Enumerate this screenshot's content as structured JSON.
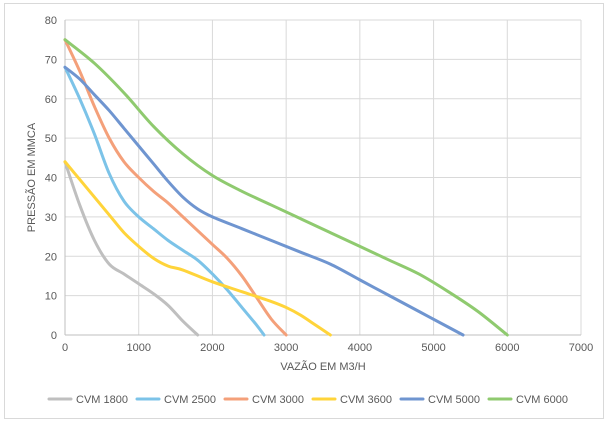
{
  "chart_data": {
    "type": "line",
    "title": "",
    "xlabel": "VAZÃO EM M3/H",
    "ylabel": "PRESSÃO EM MMCA",
    "xlim": [
      0,
      7000
    ],
    "ylim": [
      0,
      80
    ],
    "x_ticks": [
      "0",
      "1000",
      "2000",
      "3000",
      "4000",
      "5000",
      "6000",
      "7000"
    ],
    "y_ticks": [
      "0",
      "10",
      "20",
      "30",
      "40",
      "50",
      "60",
      "70",
      "80"
    ],
    "grid": true,
    "legend_position": "bottom",
    "series": [
      {
        "name": "CVM 1800",
        "color": "#bfbfbf",
        "points": [
          [
            0,
            44
          ],
          [
            200,
            33
          ],
          [
            400,
            24
          ],
          [
            600,
            18
          ],
          [
            800,
            15.5
          ],
          [
            1000,
            13
          ],
          [
            1200,
            10.5
          ],
          [
            1400,
            7.5
          ],
          [
            1600,
            3.5
          ],
          [
            1800,
            0
          ]
        ]
      },
      {
        "name": "CVM 2500",
        "color": "#7cc3e8",
        "points": [
          [
            0,
            68
          ],
          [
            200,
            60
          ],
          [
            400,
            51
          ],
          [
            600,
            41
          ],
          [
            800,
            34
          ],
          [
            1000,
            30
          ],
          [
            1200,
            27
          ],
          [
            1400,
            24
          ],
          [
            1600,
            21.5
          ],
          [
            1800,
            19
          ],
          [
            2000,
            15.5
          ],
          [
            2200,
            11.5
          ],
          [
            2400,
            7
          ],
          [
            2600,
            2.5
          ],
          [
            2700,
            0
          ]
        ]
      },
      {
        "name": "CVM 3000",
        "color": "#f4a07a",
        "points": [
          [
            0,
            75
          ],
          [
            200,
            67
          ],
          [
            400,
            58
          ],
          [
            600,
            50
          ],
          [
            800,
            44
          ],
          [
            1000,
            40
          ],
          [
            1200,
            36.5
          ],
          [
            1400,
            33.5
          ],
          [
            1600,
            30
          ],
          [
            1800,
            26.5
          ],
          [
            2000,
            23
          ],
          [
            2200,
            19.5
          ],
          [
            2400,
            15
          ],
          [
            2600,
            9.5
          ],
          [
            2800,
            4
          ],
          [
            3000,
            0
          ]
        ]
      },
      {
        "name": "CVM 3600",
        "color": "#ffd43a",
        "points": [
          [
            0,
            44
          ],
          [
            200,
            39.5
          ],
          [
            400,
            35
          ],
          [
            600,
            30.5
          ],
          [
            800,
            26
          ],
          [
            1000,
            22.5
          ],
          [
            1200,
            19.5
          ],
          [
            1400,
            17.5
          ],
          [
            1600,
            16.5
          ],
          [
            2000,
            13.5
          ],
          [
            2400,
            11
          ],
          [
            2800,
            8.5
          ],
          [
            3000,
            7
          ],
          [
            3200,
            5
          ],
          [
            3400,
            2.5
          ],
          [
            3600,
            0
          ]
        ]
      },
      {
        "name": "CVM 5000",
        "color": "#6f95d0",
        "points": [
          [
            0,
            68
          ],
          [
            200,
            65
          ],
          [
            400,
            61
          ],
          [
            600,
            57
          ],
          [
            800,
            52.5
          ],
          [
            1000,
            48
          ],
          [
            1200,
            43.5
          ],
          [
            1400,
            39
          ],
          [
            1600,
            35
          ],
          [
            1800,
            32
          ],
          [
            2000,
            30
          ],
          [
            2400,
            27
          ],
          [
            2800,
            24
          ],
          [
            3200,
            21
          ],
          [
            3600,
            18
          ],
          [
            4000,
            14
          ],
          [
            4400,
            10
          ],
          [
            4800,
            6
          ],
          [
            5200,
            2
          ],
          [
            5400,
            0
          ]
        ]
      },
      {
        "name": "CVM 6000",
        "color": "#8fca6f",
        "points": [
          [
            0,
            75
          ],
          [
            400,
            69
          ],
          [
            800,
            61.5
          ],
          [
            1200,
            53
          ],
          [
            1600,
            46
          ],
          [
            2000,
            40.5
          ],
          [
            2400,
            36.5
          ],
          [
            2800,
            33
          ],
          [
            3200,
            29.5
          ],
          [
            3600,
            26
          ],
          [
            4000,
            22.5
          ],
          [
            4400,
            19
          ],
          [
            4800,
            15.5
          ],
          [
            5200,
            11
          ],
          [
            5600,
            6
          ],
          [
            6000,
            0
          ]
        ]
      }
    ]
  }
}
